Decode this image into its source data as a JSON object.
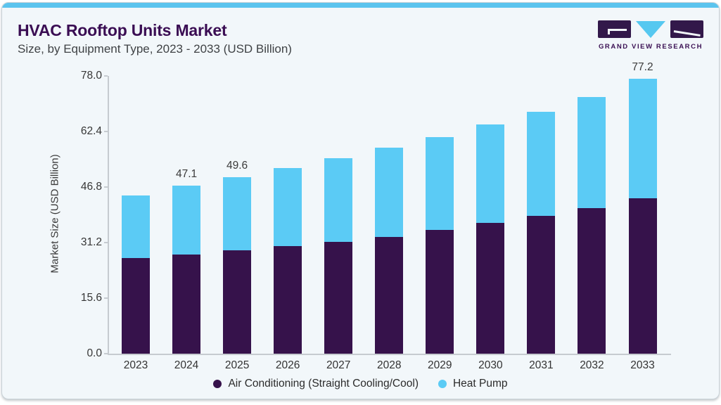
{
  "header": {
    "title": "HVAC Rooftop Units Market",
    "subtitle": "Size, by Equipment Type, 2023 - 2033 (USD Billion)",
    "logo_brand": "GRAND VIEW RESEARCH"
  },
  "chart_data": {
    "type": "bar",
    "stacked": true,
    "title": "HVAC Rooftop Units Market Size, by Equipment Type, 2023 - 2033 (USD Billion)",
    "categories": [
      "2023",
      "2024",
      "2025",
      "2026",
      "2027",
      "2028",
      "2029",
      "2030",
      "2031",
      "2032",
      "2033"
    ],
    "series": [
      {
        "name": "Air Conditioning (Straight Cooling/Cool)",
        "color": "#36124B",
        "values": [
          26.8,
          27.8,
          29.0,
          30.2,
          31.3,
          32.8,
          34.7,
          36.8,
          38.8,
          40.9,
          43.6
        ]
      },
      {
        "name": "Heat Pump",
        "color": "#5BCBF5",
        "values": [
          17.6,
          19.3,
          20.6,
          22.0,
          23.6,
          25.0,
          26.2,
          27.5,
          29.2,
          31.2,
          33.6
        ]
      }
    ],
    "totals": [
      44.4,
      47.1,
      49.6,
      52.2,
      54.9,
      57.8,
      60.9,
      64.3,
      68.0,
      72.1,
      77.2
    ],
    "bar_labels": [
      "",
      "47.1",
      "49.6",
      "",
      "",
      "",
      "",
      "",
      "",
      "",
      "77.2"
    ],
    "ylabel": "Market Size (USD Billion)",
    "yticks": [
      "0.0",
      "15.6",
      "31.2",
      "46.8",
      "62.4",
      "78.0"
    ],
    "ylim": [
      0,
      78
    ],
    "xlabel": "",
    "grid": false,
    "legend_position": "bottom"
  },
  "colors": {
    "card_background": "#F2F7FA",
    "top_accent": "#5BC4EE",
    "title_text": "#3A0D53",
    "axis_line": "#C6CBD0",
    "axis_text": "#3A3A3A",
    "logo_purple": "#32184A",
    "logo_cyan": "#56C8F0"
  }
}
